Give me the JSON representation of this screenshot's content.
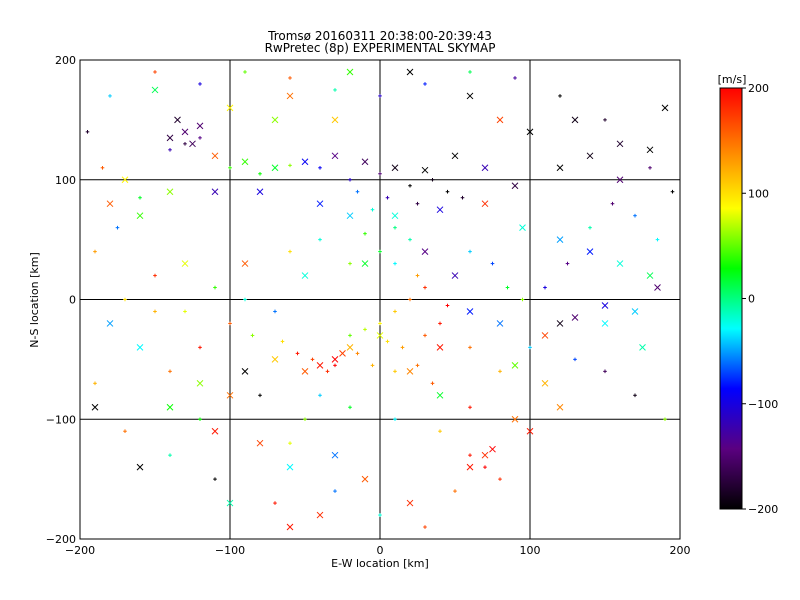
{
  "chart_data": {
    "type": "scatter",
    "title": "Tromsø 20160311 20:38:00-20:39:43",
    "subtitle": "RwPretec (8p) EXPERIMENTAL SKYMAP",
    "xlabel": "E-W location [km]",
    "ylabel": "N-S location [km]",
    "xlim": [
      -200,
      200
    ],
    "ylim": [
      -200,
      200
    ],
    "x_ticks": [
      -200,
      -100,
      0,
      100,
      200
    ],
    "y_ticks": [
      -200,
      -100,
      0,
      100,
      200
    ],
    "grid": true,
    "colorbar": {
      "label": "[m/s]",
      "range": [
        -200,
        200
      ],
      "ticks": [
        200,
        100,
        0,
        -100,
        -200
      ],
      "colors": [
        "#000000",
        "#5a0080",
        "#0000ff",
        "#00ffff",
        "#00ff00",
        "#ffff00",
        "#ff8000",
        "#ff0000"
      ]
    },
    "series": [
      {
        "marker": "x",
        "points": [
          [
            -130,
            140,
            -150
          ],
          [
            -140,
            135,
            -170
          ],
          [
            -125,
            130,
            -160
          ],
          [
            -135,
            150,
            -180
          ],
          [
            -120,
            145,
            -150
          ],
          [
            -110,
            120,
            160
          ],
          [
            -90,
            115,
            40
          ],
          [
            -70,
            110,
            20
          ],
          [
            -50,
            115,
            -90
          ],
          [
            -30,
            120,
            -140
          ],
          [
            -10,
            115,
            -160
          ],
          [
            10,
            110,
            -190
          ],
          [
            30,
            108,
            -200
          ],
          [
            50,
            120,
            -200
          ],
          [
            70,
            110,
            -120
          ],
          [
            90,
            95,
            -170
          ],
          [
            120,
            110,
            -200
          ],
          [
            140,
            120,
            -190
          ],
          [
            160,
            130,
            -180
          ],
          [
            180,
            125,
            -200
          ],
          [
            100,
            140,
            -200
          ],
          [
            130,
            150,
            -190
          ],
          [
            60,
            170,
            -200
          ],
          [
            20,
            190,
            -200
          ],
          [
            -20,
            190,
            40
          ],
          [
            -60,
            170,
            150
          ],
          [
            -100,
            160,
            90
          ],
          [
            -150,
            175,
            10
          ],
          [
            -170,
            100,
            90
          ],
          [
            -180,
            80,
            160
          ],
          [
            -160,
            70,
            40
          ],
          [
            -140,
            90,
            60
          ],
          [
            -110,
            90,
            -120
          ],
          [
            -80,
            90,
            -100
          ],
          [
            -40,
            80,
            -80
          ],
          [
            -20,
            70,
            -40
          ],
          [
            10,
            70,
            -20
          ],
          [
            40,
            75,
            -100
          ],
          [
            70,
            80,
            180
          ],
          [
            95,
            60,
            -20
          ],
          [
            120,
            50,
            -50
          ],
          [
            140,
            40,
            -80
          ],
          [
            160,
            30,
            -20
          ],
          [
            180,
            20,
            10
          ],
          [
            170,
            -10,
            -40
          ],
          [
            150,
            -20,
            -30
          ],
          [
            130,
            -15,
            -150
          ],
          [
            110,
            -30,
            170
          ],
          [
            80,
            -20,
            -60
          ],
          [
            60,
            -10,
            -80
          ],
          [
            40,
            -40,
            190
          ],
          [
            20,
            -60,
            140
          ],
          [
            0,
            -30,
            80
          ],
          [
            -20,
            -40,
            120
          ],
          [
            -30,
            -50,
            200
          ],
          [
            -40,
            -55,
            190
          ],
          [
            -25,
            -45,
            170
          ],
          [
            -50,
            -60,
            160
          ],
          [
            -70,
            -50,
            110
          ],
          [
            -90,
            -60,
            -200
          ],
          [
            -100,
            -80,
            150
          ],
          [
            -120,
            -70,
            60
          ],
          [
            -140,
            -90,
            30
          ],
          [
            -160,
            -40,
            -30
          ],
          [
            -180,
            -20,
            -50
          ],
          [
            -190,
            -90,
            -200
          ],
          [
            -110,
            -110,
            190
          ],
          [
            -80,
            -120,
            170
          ],
          [
            -60,
            -140,
            -30
          ],
          [
            -30,
            -130,
            -60
          ],
          [
            -10,
            -150,
            160
          ],
          [
            20,
            -170,
            180
          ],
          [
            60,
            -140,
            190
          ],
          [
            75,
            -125,
            200
          ],
          [
            70,
            -130,
            180
          ],
          [
            90,
            -100,
            150
          ],
          [
            100,
            -110,
            190
          ],
          [
            120,
            -90,
            140
          ],
          [
            110,
            -70,
            120
          ],
          [
            90,
            -55,
            50
          ],
          [
            40,
            -80,
            20
          ],
          [
            -160,
            -140,
            -200
          ],
          [
            -100,
            -170,
            -10
          ],
          [
            -60,
            -190,
            190
          ],
          [
            -40,
            -180,
            180
          ],
          [
            50,
            20,
            -120
          ],
          [
            30,
            40,
            -140
          ],
          [
            -10,
            30,
            20
          ],
          [
            -50,
            20,
            -20
          ],
          [
            -90,
            30,
            160
          ],
          [
            -130,
            30,
            80
          ],
          [
            120,
            -20,
            -190
          ],
          [
            150,
            -5,
            -100
          ],
          [
            175,
            -40,
            -10
          ],
          [
            185,
            10,
            -150
          ],
          [
            190,
            160,
            -200
          ],
          [
            160,
            100,
            -150
          ],
          [
            80,
            150,
            170
          ],
          [
            -30,
            150,
            110
          ],
          [
            -70,
            150,
            60
          ]
        ]
      },
      {
        "marker": "+",
        "points": [
          [
            -130,
            130,
            -170
          ],
          [
            -120,
            135,
            -140
          ],
          [
            -140,
            125,
            -120
          ],
          [
            -100,
            110,
            40
          ],
          [
            -80,
            105,
            30
          ],
          [
            -60,
            112,
            60
          ],
          [
            -40,
            110,
            -90
          ],
          [
            -20,
            100,
            -110
          ],
          [
            0,
            105,
            -150
          ],
          [
            20,
            95,
            -200
          ],
          [
            35,
            100,
            -190
          ],
          [
            45,
            90,
            -200
          ],
          [
            55,
            85,
            -180
          ],
          [
            25,
            80,
            -170
          ],
          [
            5,
            85,
            -120
          ],
          [
            -15,
            90,
            -60
          ],
          [
            -5,
            75,
            -20
          ],
          [
            10,
            60,
            0
          ],
          [
            20,
            50,
            -10
          ],
          [
            -10,
            55,
            40
          ],
          [
            0,
            40,
            20
          ],
          [
            -20,
            30,
            60
          ],
          [
            10,
            30,
            -30
          ],
          [
            25,
            20,
            130
          ],
          [
            30,
            10,
            180
          ],
          [
            20,
            0,
            150
          ],
          [
            10,
            -10,
            110
          ],
          [
            0,
            -20,
            90
          ],
          [
            -10,
            -25,
            70
          ],
          [
            -20,
            -30,
            50
          ],
          [
            5,
            -35,
            100
          ],
          [
            15,
            -40,
            130
          ],
          [
            30,
            -30,
            160
          ],
          [
            40,
            -20,
            190
          ],
          [
            45,
            -5,
            200
          ],
          [
            -30,
            -55,
            200
          ],
          [
            -35,
            -60,
            180
          ],
          [
            -45,
            -50,
            170
          ],
          [
            -55,
            -45,
            190
          ],
          [
            -15,
            -45,
            140
          ],
          [
            -5,
            -55,
            120
          ],
          [
            10,
            -60,
            110
          ],
          [
            25,
            -55,
            150
          ],
          [
            35,
            -70,
            160
          ],
          [
            -65,
            -35,
            100
          ],
          [
            -85,
            -30,
            60
          ],
          [
            -100,
            -20,
            160
          ],
          [
            -120,
            -40,
            190
          ],
          [
            -140,
            -60,
            150
          ],
          [
            -150,
            -10,
            120
          ],
          [
            -170,
            0,
            100
          ],
          [
            -190,
            40,
            130
          ],
          [
            -175,
            60,
            -60
          ],
          [
            -160,
            85,
            20
          ],
          [
            -150,
            20,
            180
          ],
          [
            -130,
            -10,
            80
          ],
          [
            -110,
            10,
            40
          ],
          [
            -90,
            0,
            -20
          ],
          [
            -70,
            -10,
            -60
          ],
          [
            -60,
            40,
            100
          ],
          [
            -40,
            50,
            -20
          ],
          [
            60,
            40,
            -40
          ],
          [
            75,
            30,
            -70
          ],
          [
            85,
            10,
            20
          ],
          [
            95,
            0,
            60
          ],
          [
            110,
            10,
            -100
          ],
          [
            125,
            30,
            -140
          ],
          [
            140,
            60,
            -10
          ],
          [
            155,
            80,
            -150
          ],
          [
            170,
            70,
            -60
          ],
          [
            185,
            50,
            -30
          ],
          [
            195,
            90,
            -200
          ],
          [
            180,
            110,
            -150
          ],
          [
            150,
            150,
            -180
          ],
          [
            120,
            170,
            -200
          ],
          [
            90,
            185,
            -130
          ],
          [
            60,
            190,
            10
          ],
          [
            30,
            180,
            -80
          ],
          [
            0,
            170,
            -110
          ],
          [
            -30,
            175,
            -10
          ],
          [
            -60,
            185,
            160
          ],
          [
            -90,
            190,
            50
          ],
          [
            -120,
            180,
            -100
          ],
          [
            -150,
            190,
            170
          ],
          [
            -180,
            170,
            -40
          ],
          [
            -195,
            140,
            -180
          ],
          [
            -185,
            110,
            160
          ],
          [
            60,
            -40,
            150
          ],
          [
            80,
            -60,
            120
          ],
          [
            100,
            -40,
            -40
          ],
          [
            130,
            -50,
            -70
          ],
          [
            150,
            -60,
            -160
          ],
          [
            170,
            -80,
            -190
          ],
          [
            190,
            -100,
            60
          ],
          [
            60,
            -130,
            190
          ],
          [
            70,
            -140,
            200
          ],
          [
            80,
            -150,
            180
          ],
          [
            50,
            -160,
            150
          ],
          [
            30,
            -190,
            170
          ],
          [
            0,
            -180,
            -20
          ],
          [
            -30,
            -160,
            -60
          ],
          [
            -70,
            -170,
            190
          ],
          [
            -110,
            -150,
            -200
          ],
          [
            -140,
            -130,
            -10
          ],
          [
            -170,
            -110,
            150
          ],
          [
            -190,
            -70,
            120
          ],
          [
            -50,
            -100,
            60
          ],
          [
            -20,
            -90,
            20
          ],
          [
            10,
            -100,
            -30
          ],
          [
            40,
            -110,
            110
          ],
          [
            60,
            -90,
            190
          ],
          [
            -80,
            -80,
            -200
          ],
          [
            -120,
            -100,
            30
          ],
          [
            -60,
            -120,
            80
          ],
          [
            -40,
            -80,
            -40
          ]
        ]
      }
    ]
  }
}
